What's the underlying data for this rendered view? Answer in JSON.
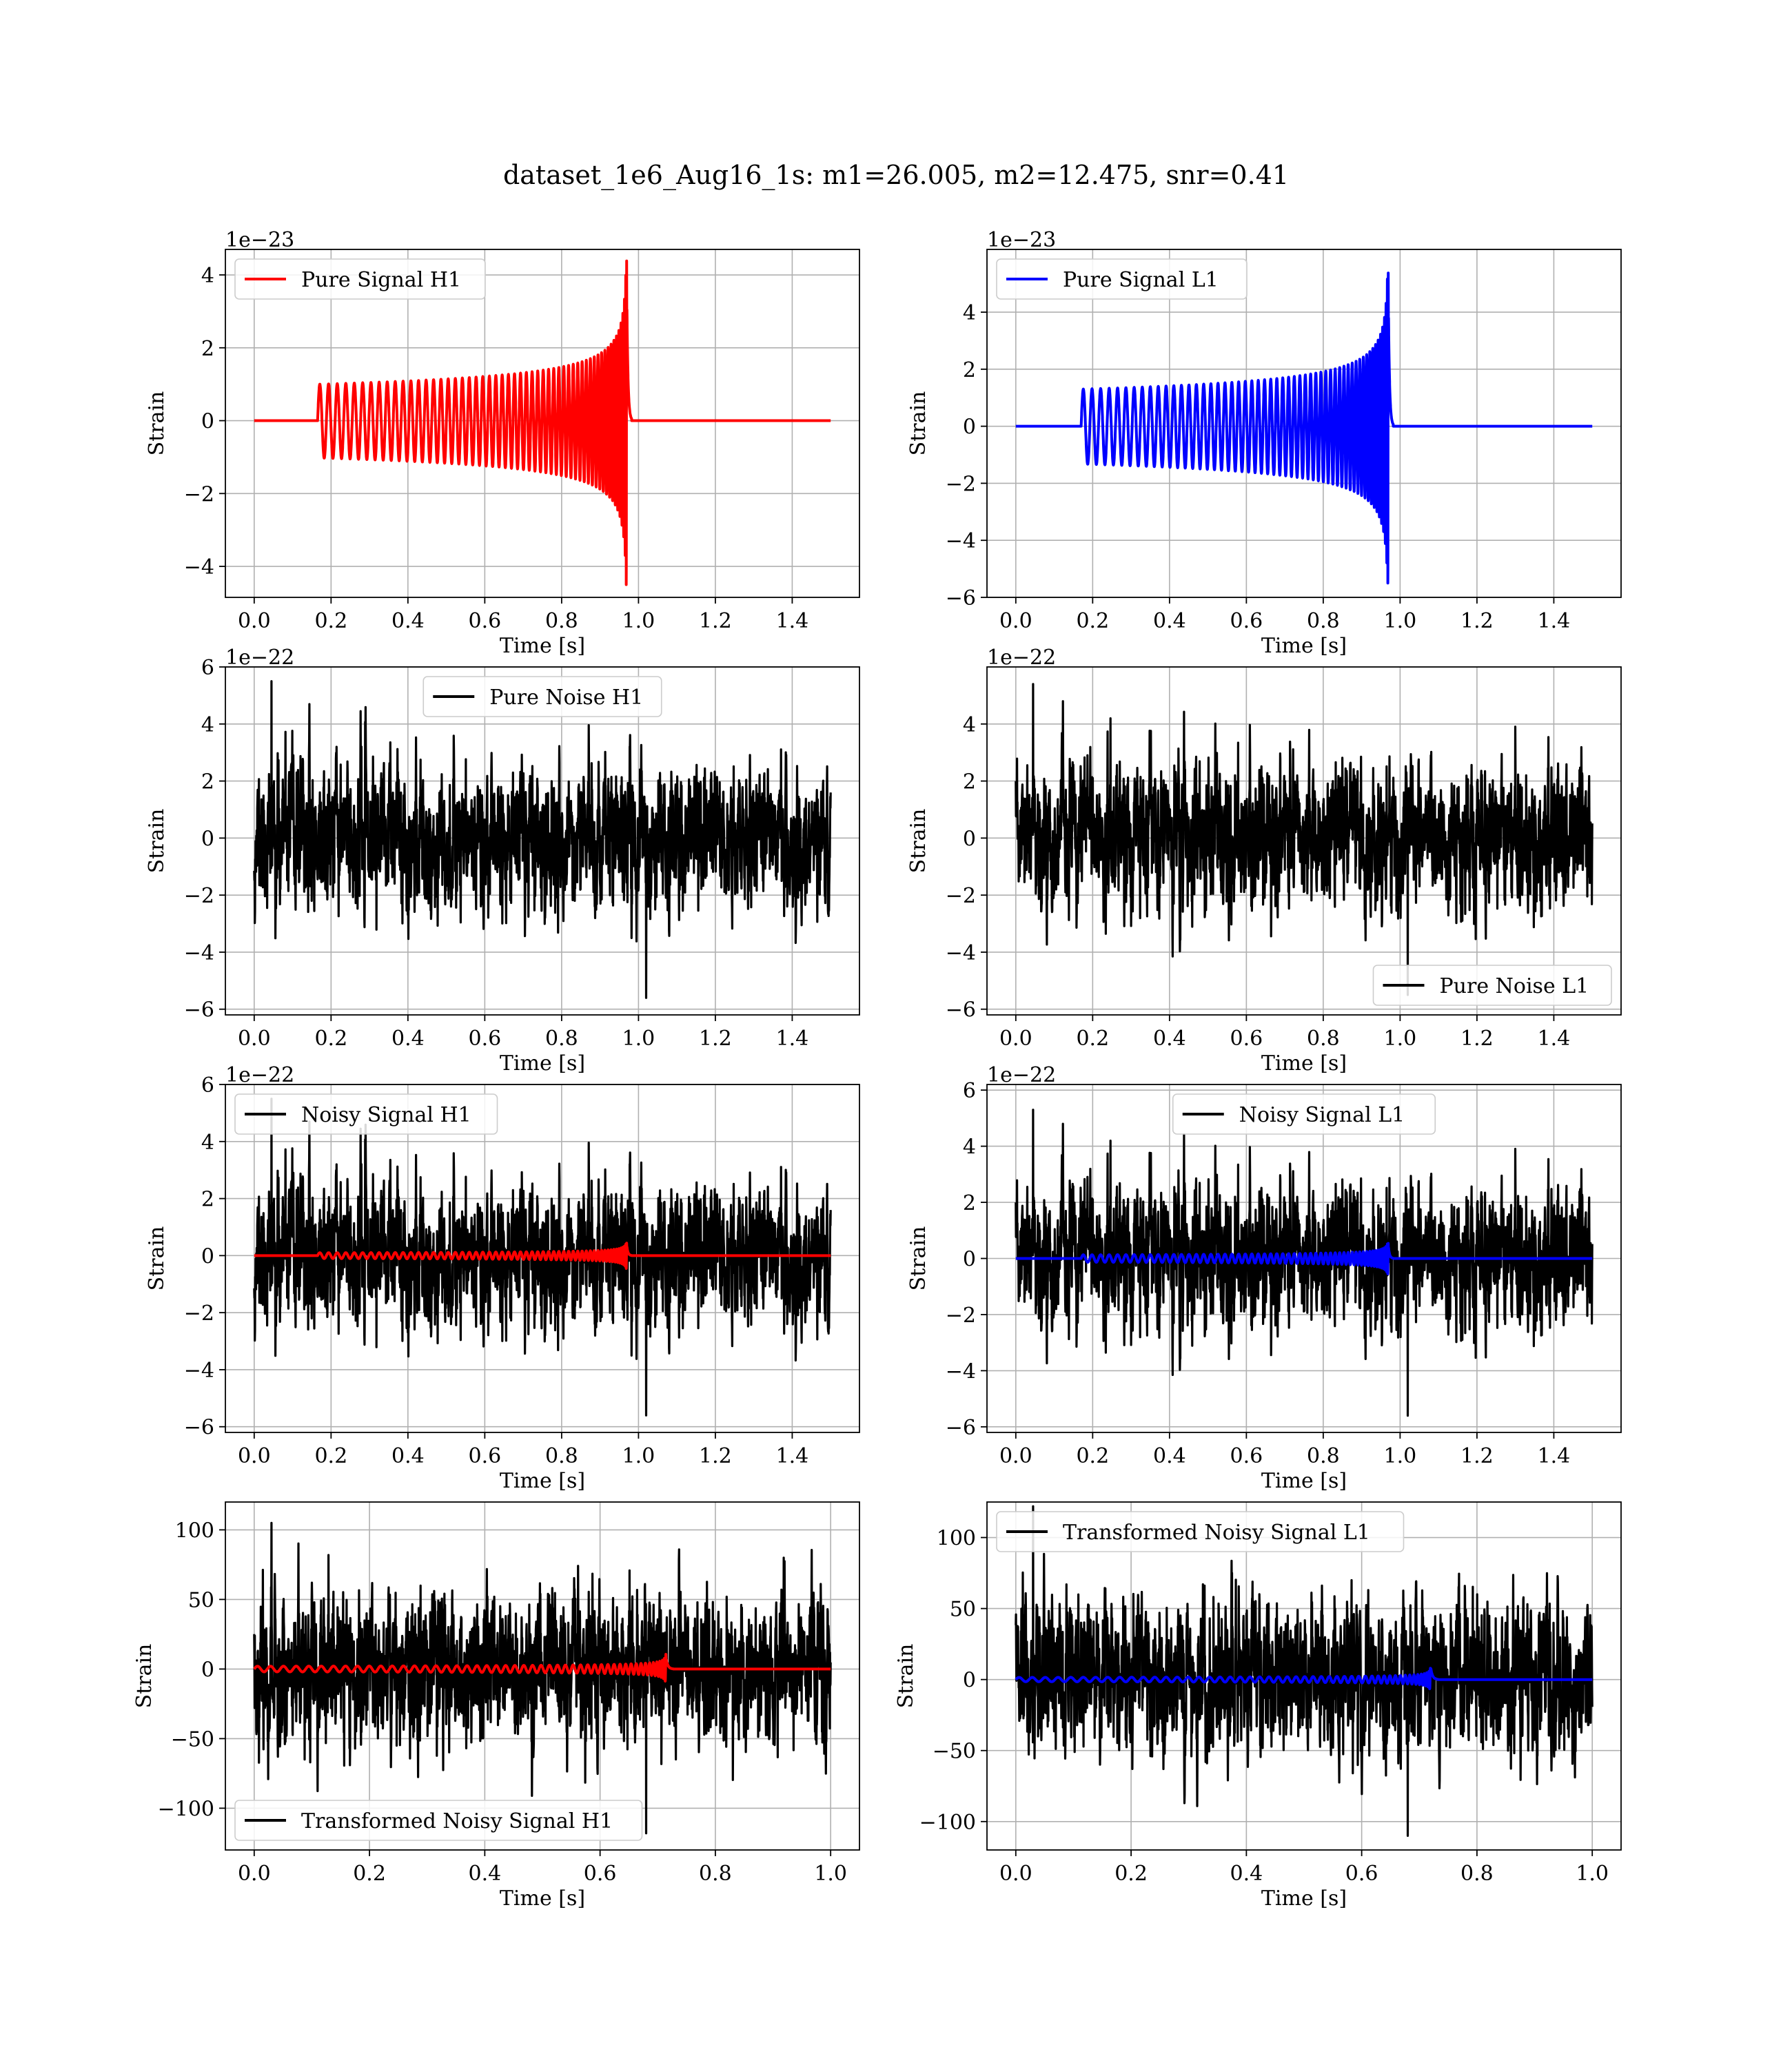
{
  "figure": {
    "title": "dataset_1e6_Aug16_1s: m1=26.005, m2=12.475, snr=0.41"
  },
  "colors": {
    "h1": "#ff0000",
    "l1": "#0000ff",
    "noise": "#000000",
    "grid": "#b0b0b0"
  },
  "chart_data": [
    {
      "type": "line",
      "id": "pure-signal-h1",
      "xlabel": "Time [s]",
      "ylabel": "Strain",
      "offset": "1e−23",
      "xlim": [
        -0.075,
        1.575
      ],
      "ylim": [
        -4.85,
        4.7
      ],
      "xticks": [
        0.0,
        0.2,
        0.4,
        0.6,
        0.8,
        1.0,
        1.2,
        1.4
      ],
      "xticklabels": [
        "0.0",
        "0.2",
        "0.4",
        "0.6",
        "0.8",
        "1.0",
        "1.2",
        "1.4"
      ],
      "yticks": [
        -4,
        -2,
        0,
        2,
        4
      ],
      "yticklabels": [
        "−4",
        "−2",
        "0",
        "2",
        "4"
      ],
      "legend": {
        "position": "upper left"
      },
      "grid": true,
      "series": [
        {
          "name": "Pure Signal H1",
          "color": "#ff0000",
          "kind": "chirp",
          "params": {
            "t_start": 0.0,
            "t_end": 1.5,
            "t_on": 0.165,
            "t_merge": 0.97,
            "amp0": 1.0,
            "amp_peak": 4.4,
            "amp_neg_peak": 4.5,
            "cycles": 56
          }
        }
      ]
    },
    {
      "type": "line",
      "id": "pure-signal-l1",
      "xlabel": "Time [s]",
      "ylabel": "Strain",
      "offset": "1e−23",
      "xlim": [
        -0.075,
        1.575
      ],
      "ylim": [
        -6.0,
        6.2
      ],
      "xticks": [
        0.0,
        0.2,
        0.4,
        0.6,
        0.8,
        1.0,
        1.2,
        1.4
      ],
      "xticklabels": [
        "0.0",
        "0.2",
        "0.4",
        "0.6",
        "0.8",
        "1.0",
        "1.2",
        "1.4"
      ],
      "yticks": [
        -6,
        -4,
        -2,
        0,
        2,
        4
      ],
      "yticklabels": [
        "−6",
        "−4",
        "−2",
        "0",
        "2",
        "4"
      ],
      "legend": {
        "position": "upper left"
      },
      "grid": true,
      "series": [
        {
          "name": "Pure Signal L1",
          "color": "#0000ff",
          "kind": "chirp",
          "params": {
            "t_start": 0.0,
            "t_end": 1.5,
            "t_on": 0.17,
            "t_merge": 0.97,
            "amp0": 1.3,
            "amp_peak": 5.4,
            "amp_neg_peak": 5.5,
            "cycles": 56
          }
        }
      ]
    },
    {
      "type": "line",
      "id": "pure-noise-h1",
      "xlabel": "Time [s]",
      "ylabel": "Strain",
      "offset": "1e−22",
      "xlim": [
        -0.075,
        1.575
      ],
      "ylim": [
        -6.2,
        6.0
      ],
      "xticks": [
        0.0,
        0.2,
        0.4,
        0.6,
        0.8,
        1.0,
        1.2,
        1.4
      ],
      "xticklabels": [
        "0.0",
        "0.2",
        "0.4",
        "0.6",
        "0.8",
        "1.0",
        "1.2",
        "1.4"
      ],
      "yticks": [
        -6,
        -4,
        -2,
        0,
        2,
        4,
        6
      ],
      "yticklabels": [
        "−6",
        "−4",
        "−2",
        "0",
        "2",
        "4",
        "6"
      ],
      "legend": {
        "position": "upper center"
      },
      "grid": true,
      "series": [
        {
          "name": "Pure Noise H1",
          "color": "#000000",
          "kind": "noise",
          "params": {
            "t_start": 0.0,
            "t_end": 1.5,
            "sigma": 1.2,
            "max": 5.5,
            "min": -5.6,
            "seed": 11
          }
        }
      ]
    },
    {
      "type": "line",
      "id": "pure-noise-l1",
      "xlabel": "Time [s]",
      "ylabel": "Strain",
      "offset": "1e−22",
      "xlim": [
        -0.075,
        1.575
      ],
      "ylim": [
        -6.2,
        6.0
      ],
      "xticks": [
        0.0,
        0.2,
        0.4,
        0.6,
        0.8,
        1.0,
        1.2,
        1.4
      ],
      "xticklabels": [
        "0.0",
        "0.2",
        "0.4",
        "0.6",
        "0.8",
        "1.0",
        "1.2",
        "1.4"
      ],
      "yticks": [
        -6,
        -4,
        -2,
        0,
        2,
        4
      ],
      "yticklabels": [
        "−6",
        "−4",
        "−2",
        "0",
        "2",
        "4"
      ],
      "legend": {
        "position": "lower right"
      },
      "grid": true,
      "series": [
        {
          "name": "Pure Noise L1",
          "color": "#000000",
          "kind": "noise",
          "params": {
            "t_start": 0.0,
            "t_end": 1.5,
            "sigma": 1.2,
            "max": 5.4,
            "min": -5.5,
            "seed": 23
          }
        }
      ]
    },
    {
      "type": "line",
      "id": "noisy-signal-h1",
      "xlabel": "Time [s]",
      "ylabel": "Strain",
      "offset": "1e−22",
      "xlim": [
        -0.075,
        1.575
      ],
      "ylim": [
        -6.2,
        6.0
      ],
      "xticks": [
        0.0,
        0.2,
        0.4,
        0.6,
        0.8,
        1.0,
        1.2,
        1.4
      ],
      "xticklabels": [
        "0.0",
        "0.2",
        "0.4",
        "0.6",
        "0.8",
        "1.0",
        "1.2",
        "1.4"
      ],
      "yticks": [
        -6,
        -4,
        -2,
        0,
        2,
        4,
        6
      ],
      "yticklabels": [
        "−6",
        "−4",
        "−2",
        "0",
        "2",
        "4",
        "6"
      ],
      "legend": {
        "position": "upper left"
      },
      "grid": true,
      "series": [
        {
          "name": "Noisy Signal H1",
          "color": "#000000",
          "kind": "noise",
          "params": {
            "t_start": 0.0,
            "t_end": 1.5,
            "sigma": 1.2,
            "max": 5.5,
            "min": -5.6,
            "seed": 11
          }
        },
        {
          "name": "",
          "color": "#ff0000",
          "kind": "chirp",
          "params": {
            "t_start": 0.0,
            "t_end": 1.5,
            "t_on": 0.165,
            "t_merge": 0.97,
            "amp0": 0.1,
            "amp_peak": 0.44,
            "amp_neg_peak": 0.45,
            "cycles": 56
          }
        }
      ]
    },
    {
      "type": "line",
      "id": "noisy-signal-l1",
      "xlabel": "Time [s]",
      "ylabel": "Strain",
      "offset": "1e−22",
      "xlim": [
        -0.075,
        1.575
      ],
      "ylim": [
        -6.2,
        6.2
      ],
      "xticks": [
        0.0,
        0.2,
        0.4,
        0.6,
        0.8,
        1.0,
        1.2,
        1.4
      ],
      "xticklabels": [
        "0.0",
        "0.2",
        "0.4",
        "0.6",
        "0.8",
        "1.0",
        "1.2",
        "1.4"
      ],
      "yticks": [
        -6,
        -4,
        -2,
        0,
        2,
        4,
        6
      ],
      "yticklabels": [
        "−6",
        "−4",
        "−2",
        "0",
        "2",
        "4",
        "6"
      ],
      "legend": {
        "position": "upper center"
      },
      "grid": true,
      "series": [
        {
          "name": "Noisy Signal L1",
          "color": "#000000",
          "kind": "noise",
          "params": {
            "t_start": 0.0,
            "t_end": 1.5,
            "sigma": 1.2,
            "max": 5.3,
            "min": -5.6,
            "seed": 23
          }
        },
        {
          "name": "",
          "color": "#0000ff",
          "kind": "chirp",
          "params": {
            "t_start": 0.0,
            "t_end": 1.5,
            "t_on": 0.17,
            "t_merge": 0.97,
            "amp0": 0.13,
            "amp_peak": 0.54,
            "amp_neg_peak": 0.55,
            "cycles": 56
          }
        }
      ]
    },
    {
      "type": "line",
      "id": "transformed-noisy-signal-h1",
      "xlabel": "Time [s]",
      "ylabel": "Strain",
      "offset": "",
      "xlim": [
        -0.05,
        1.05
      ],
      "ylim": [
        -130,
        120
      ],
      "xticks": [
        0.0,
        0.2,
        0.4,
        0.6,
        0.8,
        1.0
      ],
      "xticklabels": [
        "0.0",
        "0.2",
        "0.4",
        "0.6",
        "0.8",
        "1.0"
      ],
      "yticks": [
        -100,
        -50,
        0,
        50,
        100
      ],
      "yticklabels": [
        "−100",
        "−50",
        "0",
        "50",
        "100"
      ],
      "legend": {
        "position": "lower left"
      },
      "grid": true,
      "series": [
        {
          "name": "Transformed Noisy Signal H1",
          "color": "#000000",
          "kind": "noise",
          "params": {
            "t_start": 0.0,
            "t_end": 1.0,
            "sigma": 26,
            "max": 105,
            "min": -118,
            "seed": 37
          }
        },
        {
          "name": "",
          "color": "#ff0000",
          "kind": "chirp",
          "params": {
            "t_start": 0.0,
            "t_end": 1.0,
            "t_on": 0.0,
            "t_merge": 0.715,
            "amp0": 2.0,
            "amp_peak": 12,
            "amp_neg_peak": 12,
            "cycles": 50
          }
        }
      ]
    },
    {
      "type": "line",
      "id": "transformed-noisy-signal-l1",
      "xlabel": "Time [s]",
      "ylabel": "Strain",
      "offset": "",
      "xlim": [
        -0.05,
        1.05
      ],
      "ylim": [
        -120,
        125
      ],
      "xticks": [
        0.0,
        0.2,
        0.4,
        0.6,
        0.8,
        1.0
      ],
      "xticklabels": [
        "0.0",
        "0.2",
        "0.4",
        "0.6",
        "0.8",
        "1.0"
      ],
      "yticks": [
        -100,
        -50,
        0,
        50,
        100
      ],
      "yticklabels": [
        "−100",
        "−50",
        "0",
        "50",
        "100"
      ],
      "legend": {
        "position": "upper left"
      },
      "grid": true,
      "series": [
        {
          "name": "Transformed Noisy Signal L1",
          "color": "#000000",
          "kind": "noise",
          "params": {
            "t_start": 0.0,
            "t_end": 1.0,
            "sigma": 26,
            "max": 122,
            "min": -110,
            "seed": 51
          }
        },
        {
          "name": "",
          "color": "#0000ff",
          "kind": "chirp",
          "params": {
            "t_start": 0.0,
            "t_end": 1.0,
            "t_on": 0.0,
            "t_merge": 0.72,
            "amp0": 1.5,
            "amp_peak": 14,
            "amp_neg_peak": 14,
            "cycles": 50
          }
        }
      ]
    }
  ]
}
